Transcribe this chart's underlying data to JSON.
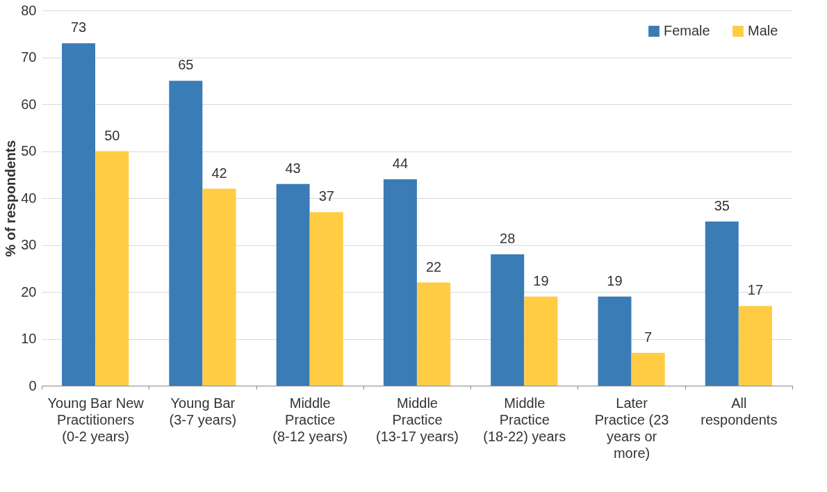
{
  "chart_data": {
    "type": "bar",
    "ylabel": "% of respondents",
    "categories": [
      "Young Bar New Practitioners (0-2 years)",
      "Young Bar (3-7 years)",
      "Middle Practice (8-12 years)",
      "Middle Practice (13-17 years)",
      "Middle Practice (18-22) years",
      "Later Practice (23 years or more)",
      "All respondents"
    ],
    "series": [
      {
        "name": "Female",
        "color": "#3a7cb5",
        "values": [
          73,
          65,
          43,
          44,
          28,
          19,
          35
        ]
      },
      {
        "name": "Male",
        "color": "#ffcc44",
        "values": [
          50,
          42,
          37,
          22,
          19,
          7,
          17
        ]
      }
    ],
    "ylim": [
      0,
      80
    ],
    "yticks": [
      0,
      10,
      20,
      30,
      40,
      50,
      60,
      70,
      80
    ],
    "grid": "y",
    "legend": "top right",
    "data_labels": true
  }
}
